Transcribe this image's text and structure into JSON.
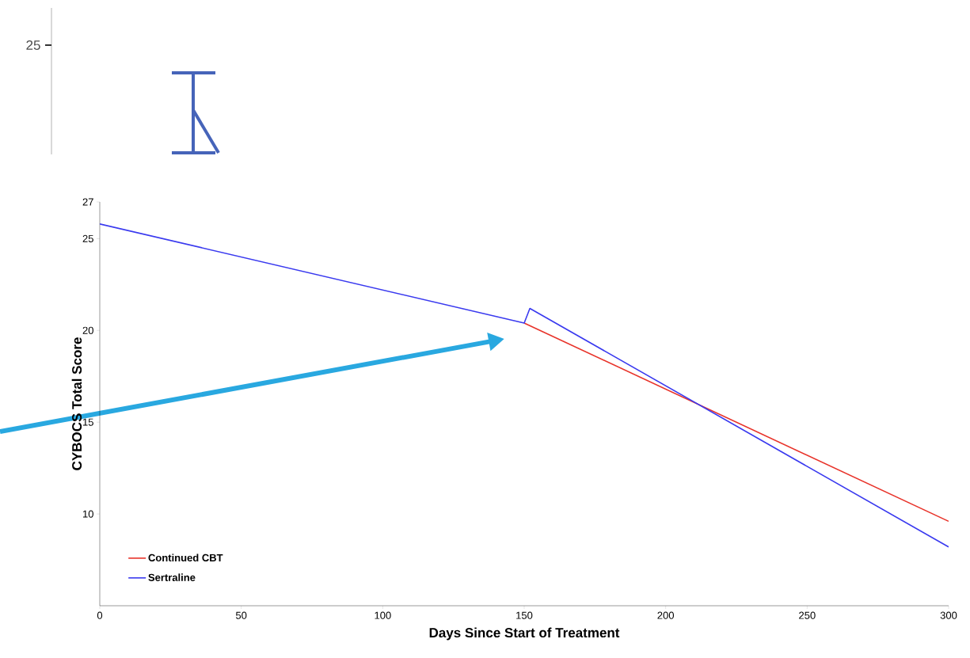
{
  "chart_data": {
    "type": "line",
    "xlabel": "Days Since Start of Treatment",
    "ylabel": "CYBOCS Total Score",
    "annotations": [
      "25"
    ],
    "xlim": [
      0,
      300
    ],
    "xticks": [
      0,
      50,
      100,
      150,
      200,
      250,
      300
    ],
    "ylim": [
      5,
      27
    ],
    "yticks": [
      10,
      15,
      20,
      25,
      27
    ],
    "legend": "bottom left",
    "series": [
      {
        "name": "Continued CBT",
        "color": "#e8332a",
        "x": [
          150,
          300
        ],
        "values": [
          20.4,
          9.6
        ]
      },
      {
        "name": "Sertraline",
        "color": "#3a3aef",
        "x": [
          0,
          150,
          152,
          300
        ],
        "values": [
          25.8,
          20.4,
          21.2,
          8.2
        ]
      }
    ]
  }
}
